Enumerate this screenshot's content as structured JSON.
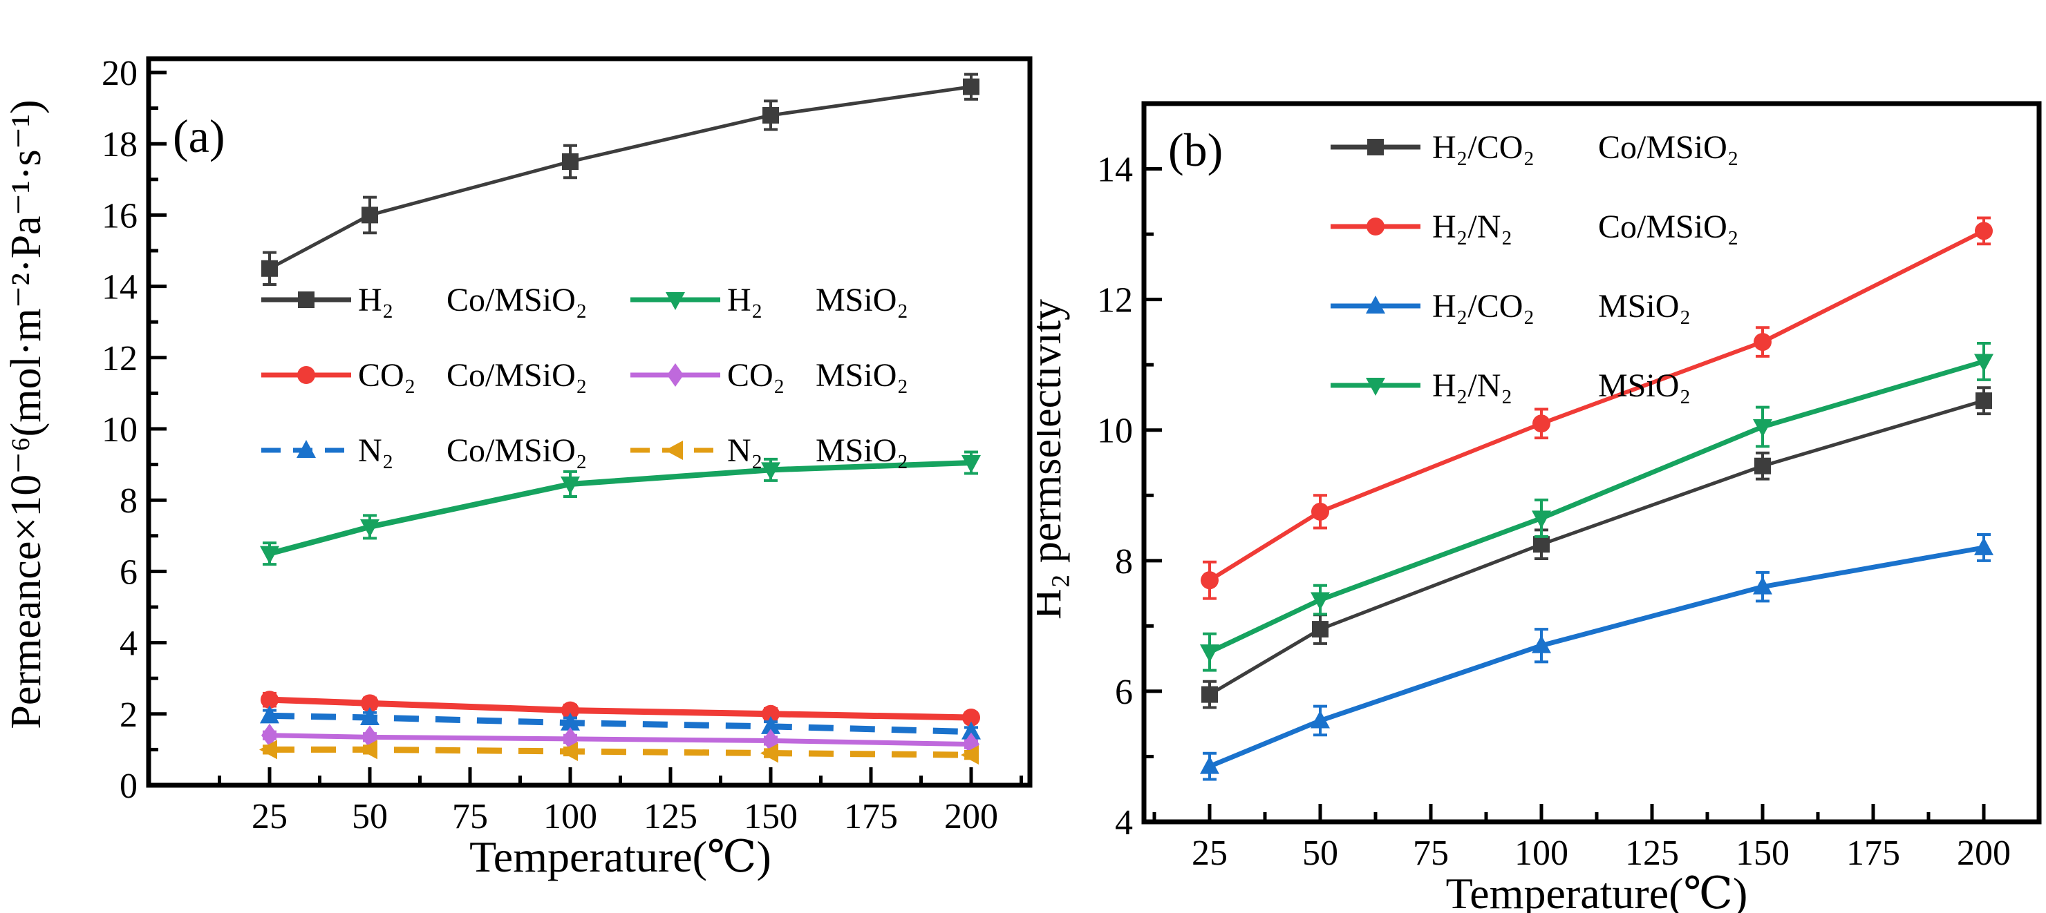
{
  "figure": {
    "background": "#ffffff",
    "text_color": "#000000",
    "axis_color": "#000000"
  },
  "chart_data": [
    {
      "id": "a",
      "type": "line",
      "panel_label": "(a)",
      "xlabel": "Temperature(℃)",
      "ylabel": "Permeance×10⁻⁶(mol·m⁻²·Pa⁻¹·s⁻¹)",
      "x": [
        25,
        50,
        100,
        150,
        200
      ],
      "xticks": [
        25,
        50,
        75,
        100,
        125,
        150,
        175,
        200
      ],
      "yticks": [
        0,
        2,
        4,
        6,
        8,
        10,
        12,
        14,
        16,
        18,
        20
      ],
      "ylim": [
        0,
        20
      ],
      "grid": false,
      "legend_position": "inside upper-middle-left, two columns",
      "legend_columns": [
        [
          0,
          1,
          2
        ],
        [
          3,
          4,
          5
        ]
      ],
      "series": [
        {
          "gas": "H₂",
          "membrane": "Co/MSiO₂",
          "color": "#3d3d3d",
          "marker": "square",
          "linestyle": "solid",
          "lw": 5,
          "values": [
            14.5,
            16.0,
            17.5,
            18.8,
            19.6
          ],
          "err": [
            0.45,
            0.5,
            0.45,
            0.4,
            0.35
          ]
        },
        {
          "gas": "CO₂",
          "membrane": "Co/MSiO₂",
          "color": "#f03b36",
          "marker": "circle",
          "linestyle": "solid",
          "lw": 9,
          "values": [
            2.4,
            2.3,
            2.1,
            2.0,
            1.9
          ],
          "err": [
            0.18,
            0.15,
            0.15,
            0.15,
            0.13
          ]
        },
        {
          "gas": "N₂",
          "membrane": "Co/MSiO₂",
          "color": "#1a72cc",
          "marker": "triangle-up",
          "linestyle": "dashed",
          "lw": 9,
          "values": [
            1.95,
            1.9,
            1.75,
            1.65,
            1.5
          ],
          "err": [
            0.15,
            0.14,
            0.14,
            0.13,
            0.12
          ]
        },
        {
          "gas": "H₂",
          "membrane": "MSiO₂",
          "color": "#16a35f",
          "marker": "triangle-down",
          "linestyle": "solid",
          "lw": 8,
          "values": [
            6.5,
            7.25,
            8.45,
            8.85,
            9.05
          ],
          "err": [
            0.3,
            0.32,
            0.35,
            0.3,
            0.3
          ]
        },
        {
          "gas": "CO₂",
          "membrane": "MSiO₂",
          "color": "#bf69dc",
          "marker": "diamond",
          "linestyle": "solid",
          "lw": 7,
          "values": [
            1.4,
            1.35,
            1.3,
            1.25,
            1.15
          ],
          "err": [
            0.1,
            0.1,
            0.1,
            0.1,
            0.1
          ]
        },
        {
          "gas": "N₂",
          "membrane": "MSiO₂",
          "color": "#e29d13",
          "marker": "triangle-left",
          "linestyle": "dashed",
          "lw": 9,
          "values": [
            1.0,
            1.0,
            0.95,
            0.9,
            0.85
          ],
          "err": [
            0.1,
            0.1,
            0.1,
            0.1,
            0.1
          ]
        }
      ]
    },
    {
      "id": "b",
      "type": "line",
      "panel_label": "(b)",
      "xlabel": "Temperature(℃)",
      "ylabel": "H₂ permselectivity",
      "x": [
        25,
        50,
        100,
        150,
        200
      ],
      "xticks": [
        25,
        50,
        75,
        100,
        125,
        150,
        175,
        200
      ],
      "yticks": [
        4,
        6,
        8,
        10,
        12,
        14
      ],
      "ylim": [
        4,
        15
      ],
      "grid": false,
      "legend_position": "inside upper-left, one column",
      "legend_columns": [
        [
          0,
          1,
          2,
          3
        ]
      ],
      "series": [
        {
          "gas": "H₂/CO₂",
          "membrane": "Co/MSiO₂",
          "color": "#3d3d3d",
          "marker": "square",
          "linestyle": "solid",
          "lw": 5,
          "values": [
            5.95,
            6.95,
            8.25,
            9.45,
            10.45
          ],
          "err": [
            0.2,
            0.22,
            0.22,
            0.2,
            0.2
          ]
        },
        {
          "gas": "H₂/N₂",
          "membrane": "Co/MSiO₂",
          "color": "#f03b36",
          "marker": "circle",
          "linestyle": "solid",
          "lw": 6,
          "values": [
            7.7,
            8.75,
            10.1,
            11.35,
            13.05
          ],
          "err": [
            0.28,
            0.25,
            0.22,
            0.22,
            0.2
          ]
        },
        {
          "gas": "H₂/CO₂",
          "membrane": "MSiO₂",
          "color": "#1a72cc",
          "marker": "triangle-up",
          "linestyle": "solid",
          "lw": 7,
          "values": [
            4.85,
            5.55,
            6.7,
            7.6,
            8.2
          ],
          "err": [
            0.2,
            0.22,
            0.25,
            0.22,
            0.2
          ]
        },
        {
          "gas": "H₂/N₂",
          "membrane": "MSiO₂",
          "color": "#16a35f",
          "marker": "triangle-down",
          "linestyle": "solid",
          "lw": 7,
          "values": [
            6.6,
            7.4,
            8.65,
            10.05,
            11.05
          ],
          "err": [
            0.28,
            0.22,
            0.28,
            0.3,
            0.28
          ]
        }
      ]
    }
  ]
}
